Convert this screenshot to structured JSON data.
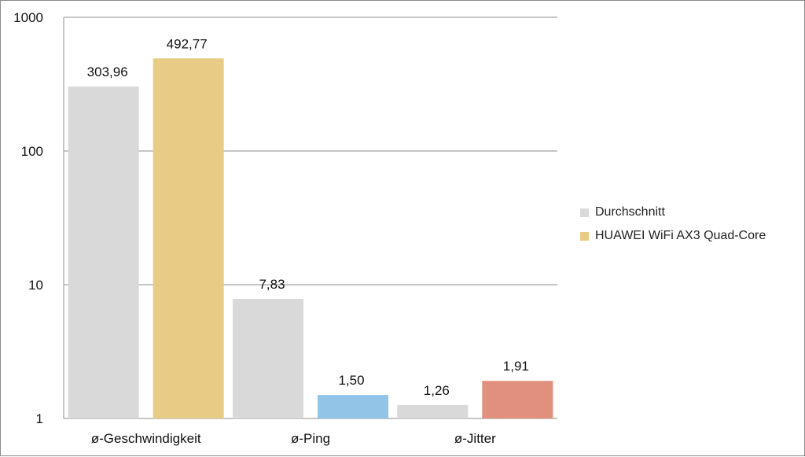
{
  "chart_data": {
    "type": "bar",
    "title": "",
    "xlabel": "",
    "ylabel": "",
    "yscale": "log",
    "ylim": [
      1,
      1000
    ],
    "yticks": [
      {
        "value": 1,
        "label": "1"
      },
      {
        "value": 10,
        "label": "10"
      },
      {
        "value": 100,
        "label": "100"
      },
      {
        "value": 1000,
        "label": "1000"
      }
    ],
    "grid": true,
    "legend_position": "right",
    "categories": [
      "ø-Geschwindigkeit",
      "ø-Ping",
      "ø-Jitter"
    ],
    "series": [
      {
        "name": "Durchschnitt",
        "values": [
          303.96,
          7.83,
          1.26
        ],
        "labels": [
          "303,96",
          "7,83",
          "1,26"
        ],
        "colors": [
          "#d9d9d9",
          "#d9d9d9",
          "#d9d9d9"
        ]
      },
      {
        "name": "HUAWEI WiFi AX3 Quad-Core",
        "values": [
          492.77,
          1.5,
          1.91
        ],
        "labels": [
          "492,77",
          "1,50",
          "1,91"
        ],
        "colors": [
          "#e8cc85",
          "#92c4e8",
          "#e0907c"
        ]
      }
    ],
    "legend_colors": [
      "#d9d9d9",
      "#e8cc85"
    ]
  }
}
